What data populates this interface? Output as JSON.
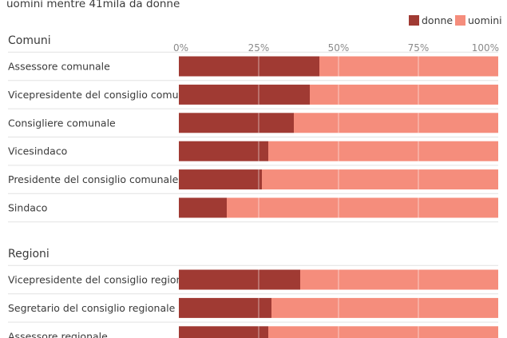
{
  "subtitle": "uomini mentre 41mila da donne",
  "legend": [
    {
      "label": "donne",
      "color": "#a03a33"
    },
    {
      "label": "uomini",
      "color": "#f58d7c"
    }
  ],
  "axis_ticks": [
    "0%",
    "25%",
    "50%",
    "75%",
    "100%"
  ],
  "colors": {
    "donne": "#a03a33",
    "uomini": "#f58d7c",
    "row_divider": "#e2e2e2",
    "gridline": "#ffffff"
  },
  "chart_data": {
    "type": "bar",
    "orientation": "horizontal",
    "stacked": true,
    "xlim": [
      0,
      100
    ],
    "xunit": "%",
    "series_names": [
      "donne",
      "uomini"
    ],
    "groups": [
      {
        "title": "Comuni",
        "rows": [
          {
            "label": "Assessore comunale",
            "donne": 44,
            "uomini": 56
          },
          {
            "label": "Vicepresidente del consiglio comunale",
            "donne": 41,
            "uomini": 59
          },
          {
            "label": "Consigliere comunale",
            "donne": 36,
            "uomini": 64
          },
          {
            "label": "Vicesindaco",
            "donne": 28,
            "uomini": 72
          },
          {
            "label": "Presidente del consiglio comunale",
            "donne": 26,
            "uomini": 74
          },
          {
            "label": "Sindaco",
            "donne": 15,
            "uomini": 85
          }
        ]
      },
      {
        "title": "Regioni",
        "rows": [
          {
            "label": "Vicepresidente del consiglio regionale",
            "donne": 38,
            "uomini": 62
          },
          {
            "label": "Segretario del consiglio regionale",
            "donne": 29,
            "uomini": 71
          },
          {
            "label": "Assessore regionale",
            "donne": 28,
            "uomini": 72
          }
        ]
      }
    ]
  }
}
